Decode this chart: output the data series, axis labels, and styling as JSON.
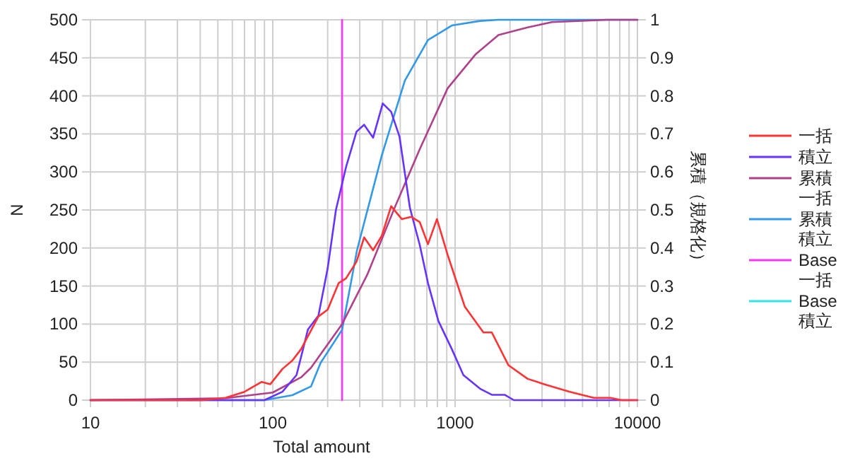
{
  "chart_data": {
    "type": "line",
    "xlabel": "Total amount",
    "ylabel": "N",
    "y2label": "累積（規格化）",
    "log": "x",
    "grid": true,
    "legend": "right",
    "marker": "none",
    "line_style": "solid",
    "xlim": [
      10,
      10000
    ],
    "ylim": [
      0,
      500
    ],
    "y2lim": [
      0,
      1
    ],
    "xticks": [
      10,
      {
        "value": 20,
        "label": null
      },
      {
        "value": 30,
        "label": null
      },
      {
        "value": 40,
        "label": null
      },
      {
        "value": 50,
        "label": null
      },
      {
        "value": 60,
        "label": null
      },
      {
        "value": 70,
        "label": null
      },
      {
        "value": 80,
        "label": null
      },
      {
        "value": 90,
        "label": null
      },
      100,
      {
        "value": 200,
        "label": null
      },
      {
        "value": 300,
        "label": null
      },
      {
        "value": 400,
        "label": null
      },
      {
        "value": 500,
        "label": null
      },
      {
        "value": 600,
        "label": null
      },
      {
        "value": 700,
        "label": null
      },
      {
        "value": 800,
        "label": null
      },
      {
        "value": 900,
        "label": null
      },
      1000,
      {
        "value": 2000,
        "label": null
      },
      {
        "value": 3000,
        "label": null
      },
      {
        "value": 4000,
        "label": null
      },
      {
        "value": 5000,
        "label": null
      },
      {
        "value": 6000,
        "label": null
      },
      {
        "value": 7000,
        "label": null
      },
      {
        "value": 8000,
        "label": null
      },
      {
        "value": 9000,
        "label": null
      },
      10000
    ],
    "yticks": [
      0,
      50,
      100,
      150,
      200,
      250,
      300,
      350,
      400,
      450,
      500
    ],
    "y2ticks": [
      0,
      0.1,
      0.2,
      0.3,
      0.4,
      0.5,
      0.6,
      0.7,
      0.8,
      0.9,
      1
    ],
    "series": [
      {
        "name": "一括",
        "color": "#ff3333",
        "x": [
          10,
          41,
          55,
          70,
          87,
          97,
          113,
          128,
          143,
          178,
          200,
          230,
          252,
          288,
          317,
          355,
          396,
          446,
          510,
          574,
          640,
          710,
          795,
          910,
          1130,
          1430,
          1590,
          1960,
          2500,
          3170,
          4260,
          5760,
          7100,
          8200,
          10000
        ],
        "values": [
          0,
          0,
          3,
          11,
          24,
          21,
          41,
          52,
          67,
          110,
          119,
          154,
          160,
          182,
          214,
          197,
          216,
          255,
          238,
          241,
          234,
          205,
          238,
          191,
          123,
          89,
          89,
          46,
          28,
          20,
          11,
          3,
          3,
          0,
          0
        ]
      },
      {
        "name": "積立",
        "color": "#6633ff",
        "x": [
          10,
          90,
          113,
          135,
          156,
          178,
          200,
          222,
          252,
          288,
          317,
          355,
          401,
          446,
          496,
          565,
          640,
          710,
          810,
          960,
          1110,
          1370,
          1590,
          1870,
          2100,
          10000
        ],
        "values": [
          0,
          0,
          11,
          33,
          93,
          111,
          173,
          250,
          306,
          353,
          362,
          345,
          390,
          379,
          346,
          253,
          204,
          154,
          104,
          67,
          33,
          15,
          7,
          7,
          0,
          0
        ]
      },
      {
        "name": "累積一括",
        "color": "#b0408a",
        "axis": "y2",
        "x": [
          10,
          55,
          100,
          143,
          162,
          240,
          330,
          470,
          640,
          910,
          1300,
          1730,
          2500,
          3400,
          6800,
          10000
        ],
        "values": [
          0,
          0.005,
          0.02,
          0.06,
          0.085,
          0.2,
          0.33,
          0.51,
          0.66,
          0.82,
          0.91,
          0.96,
          0.98,
          0.994,
          1,
          1
        ]
      },
      {
        "name": "累積積立",
        "color": "#3399e6",
        "axis": "y2",
        "x": [
          10,
          90,
          128,
          162,
          183,
          240,
          290,
          396,
          530,
          710,
          960,
          1370,
          1730,
          10000
        ],
        "values": [
          0,
          0,
          0.013,
          0.036,
          0.098,
          0.185,
          0.395,
          0.643,
          0.84,
          0.947,
          0.985,
          0.997,
          1,
          1
        ]
      },
      {
        "name": "Base一括",
        "color": "#ff33ff",
        "x": [
          240,
          240
        ],
        "values": [
          0,
          500
        ]
      },
      {
        "name": "Base積立",
        "color": "#33e6e6",
        "values": [
          null
        ]
      }
    ]
  }
}
